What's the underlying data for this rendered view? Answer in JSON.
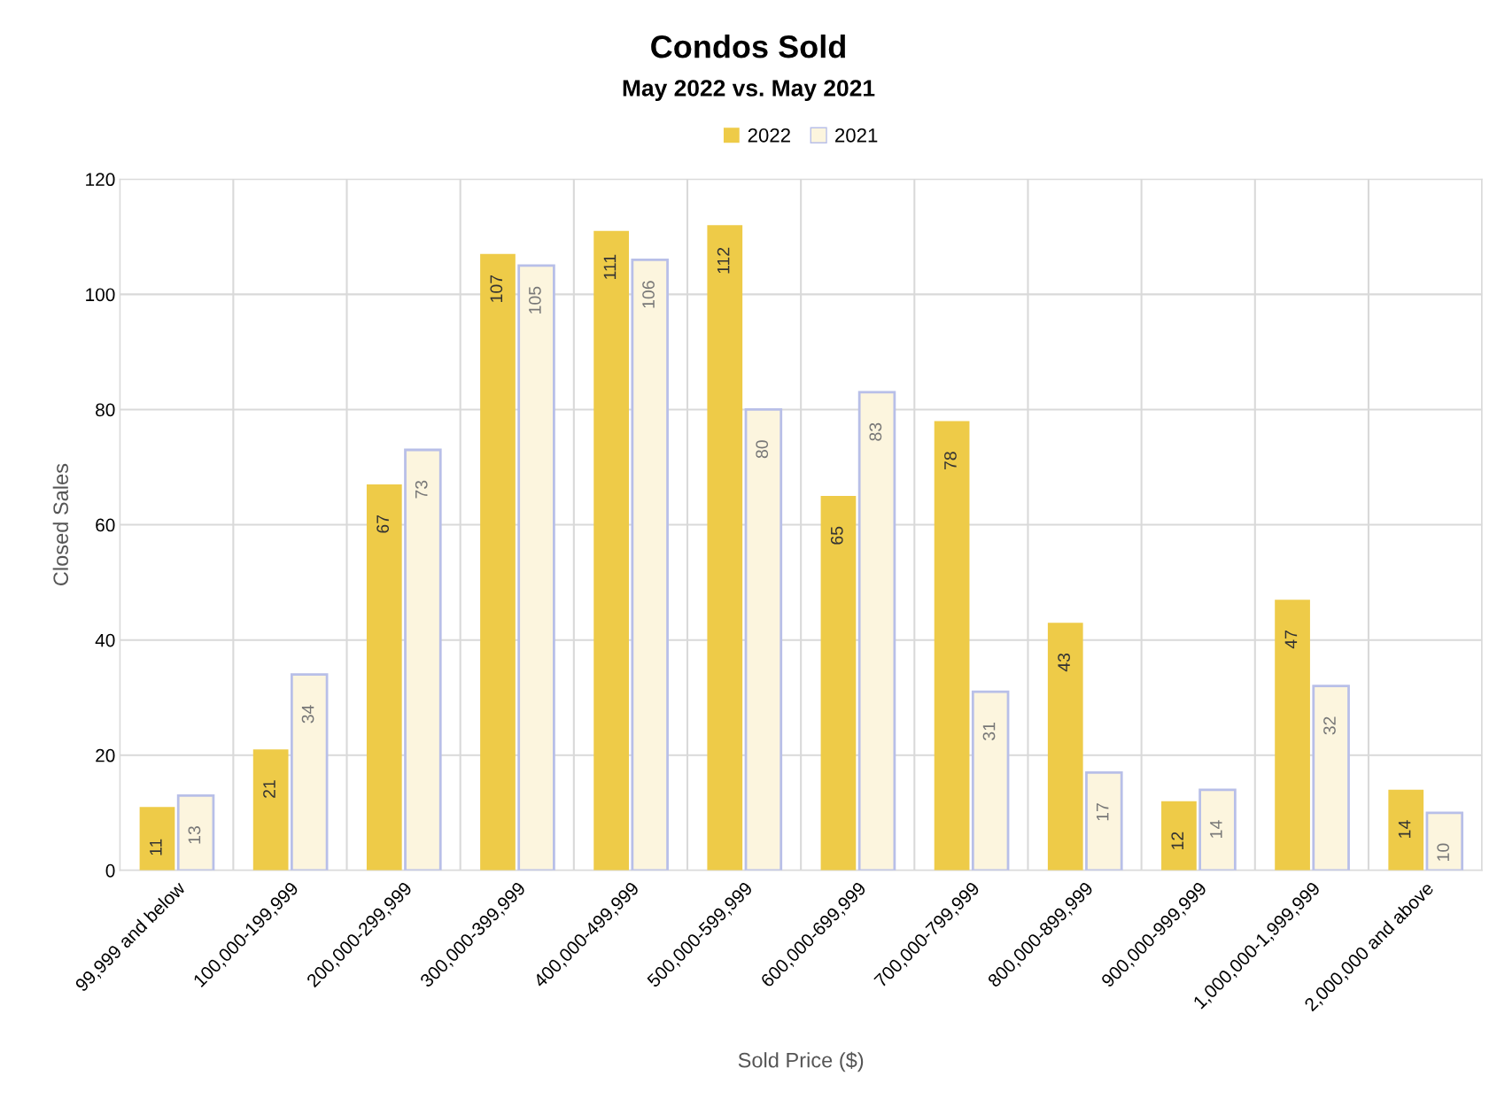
{
  "chart_data": {
    "type": "bar",
    "title": "Condos Sold",
    "subtitle": "May 2022 vs. May 2021",
    "xlabel": "Sold Price ($)",
    "ylabel": "Closed Sales",
    "categories": [
      "99,999 and below",
      "100,000-199,999",
      "200,000-299,999",
      "300,000-399,999",
      "400,000-499,999",
      "500,000-599,999",
      "600,000-699,999",
      "700,000-799,999",
      "800,000-899,999",
      "900,000-999,999",
      "1,000,000-1,999,999",
      "2,000,000 and above"
    ],
    "series": [
      {
        "name": "2022",
        "color": "#eecb48",
        "values": [
          11,
          21,
          67,
          107,
          111,
          112,
          65,
          78,
          43,
          12,
          47,
          14
        ]
      },
      {
        "name": "2021",
        "color": "#fcf5de",
        "values": [
          13,
          34,
          73,
          105,
          106,
          80,
          83,
          31,
          17,
          14,
          32,
          10
        ]
      }
    ],
    "ylim": [
      0,
      120
    ],
    "yticks": [
      0,
      20,
      40,
      60,
      80,
      100,
      120
    ],
    "grid": true,
    "legend": "top",
    "data_labels": true
  }
}
